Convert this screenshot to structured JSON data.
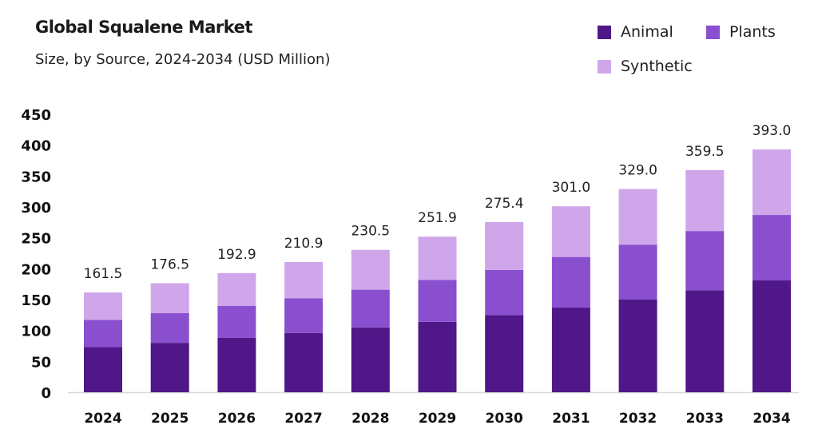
{
  "chart_data": {
    "type": "bar",
    "stacked": true,
    "title": "Global Squalene Market",
    "subtitle": "Size, by Source, 2024-2034 (USD Million)",
    "categories": [
      "2024",
      "2025",
      "2026",
      "2027",
      "2028",
      "2029",
      "2030",
      "2031",
      "2032",
      "2033",
      "2034"
    ],
    "series": [
      {
        "name": "Animal",
        "color": "#4f1787",
        "values": [
          73,
          80,
          88,
          96,
          105,
          114,
          125,
          137,
          150,
          165,
          181
        ]
      },
      {
        "name": "Plants",
        "color": "#8a4fcf",
        "values": [
          44,
          48,
          52,
          56,
          61,
          68,
          73,
          82,
          89,
          96,
          106
        ]
      },
      {
        "name": "Synthetic",
        "color": "#d0a6ea",
        "values": [
          44.5,
          48.5,
          52.9,
          58.9,
          64.5,
          69.9,
          77.4,
          82,
          90,
          98.5,
          106
        ]
      }
    ],
    "totals": [
      "161.5",
      "176.5",
      "192.9",
      "210.9",
      "230.5",
      "251.9",
      "275.4",
      "301.0",
      "329.0",
      "359.5",
      "393.0"
    ],
    "yticks": [
      "0",
      "50",
      "100",
      "150",
      "200",
      "250",
      "300",
      "350",
      "400",
      "450"
    ],
    "ylim": [
      0,
      450
    ],
    "xlabel": "",
    "ylabel": "",
    "grid": false,
    "legend_position": "top-right"
  }
}
